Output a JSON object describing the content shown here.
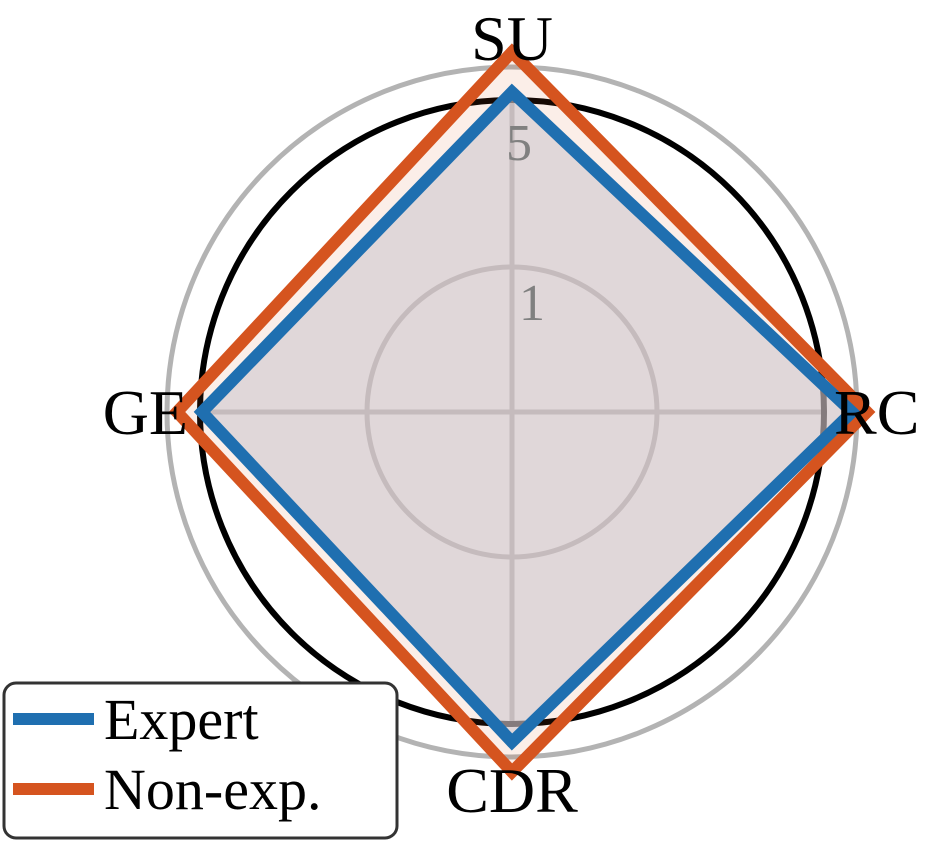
{
  "chart_data": {
    "type": "radar",
    "axes": [
      "SU",
      "RC",
      "CDR",
      "GE"
    ],
    "r_ticks": [
      {
        "value": 1,
        "label": "1"
      },
      {
        "value": 5,
        "label": "5"
      }
    ],
    "series": [
      {
        "name": "Expert",
        "values": [
          4.5,
          4.9,
          4.7,
          4.3
        ],
        "color": "#1f6fb0"
      },
      {
        "name": "Non-exp.",
        "values": [
          5.3,
          5.2,
          5.3,
          4.8
        ],
        "color": "#d5541f"
      }
    ],
    "fill_color": "#cfc8cf",
    "legend_position": "bottom-left"
  }
}
